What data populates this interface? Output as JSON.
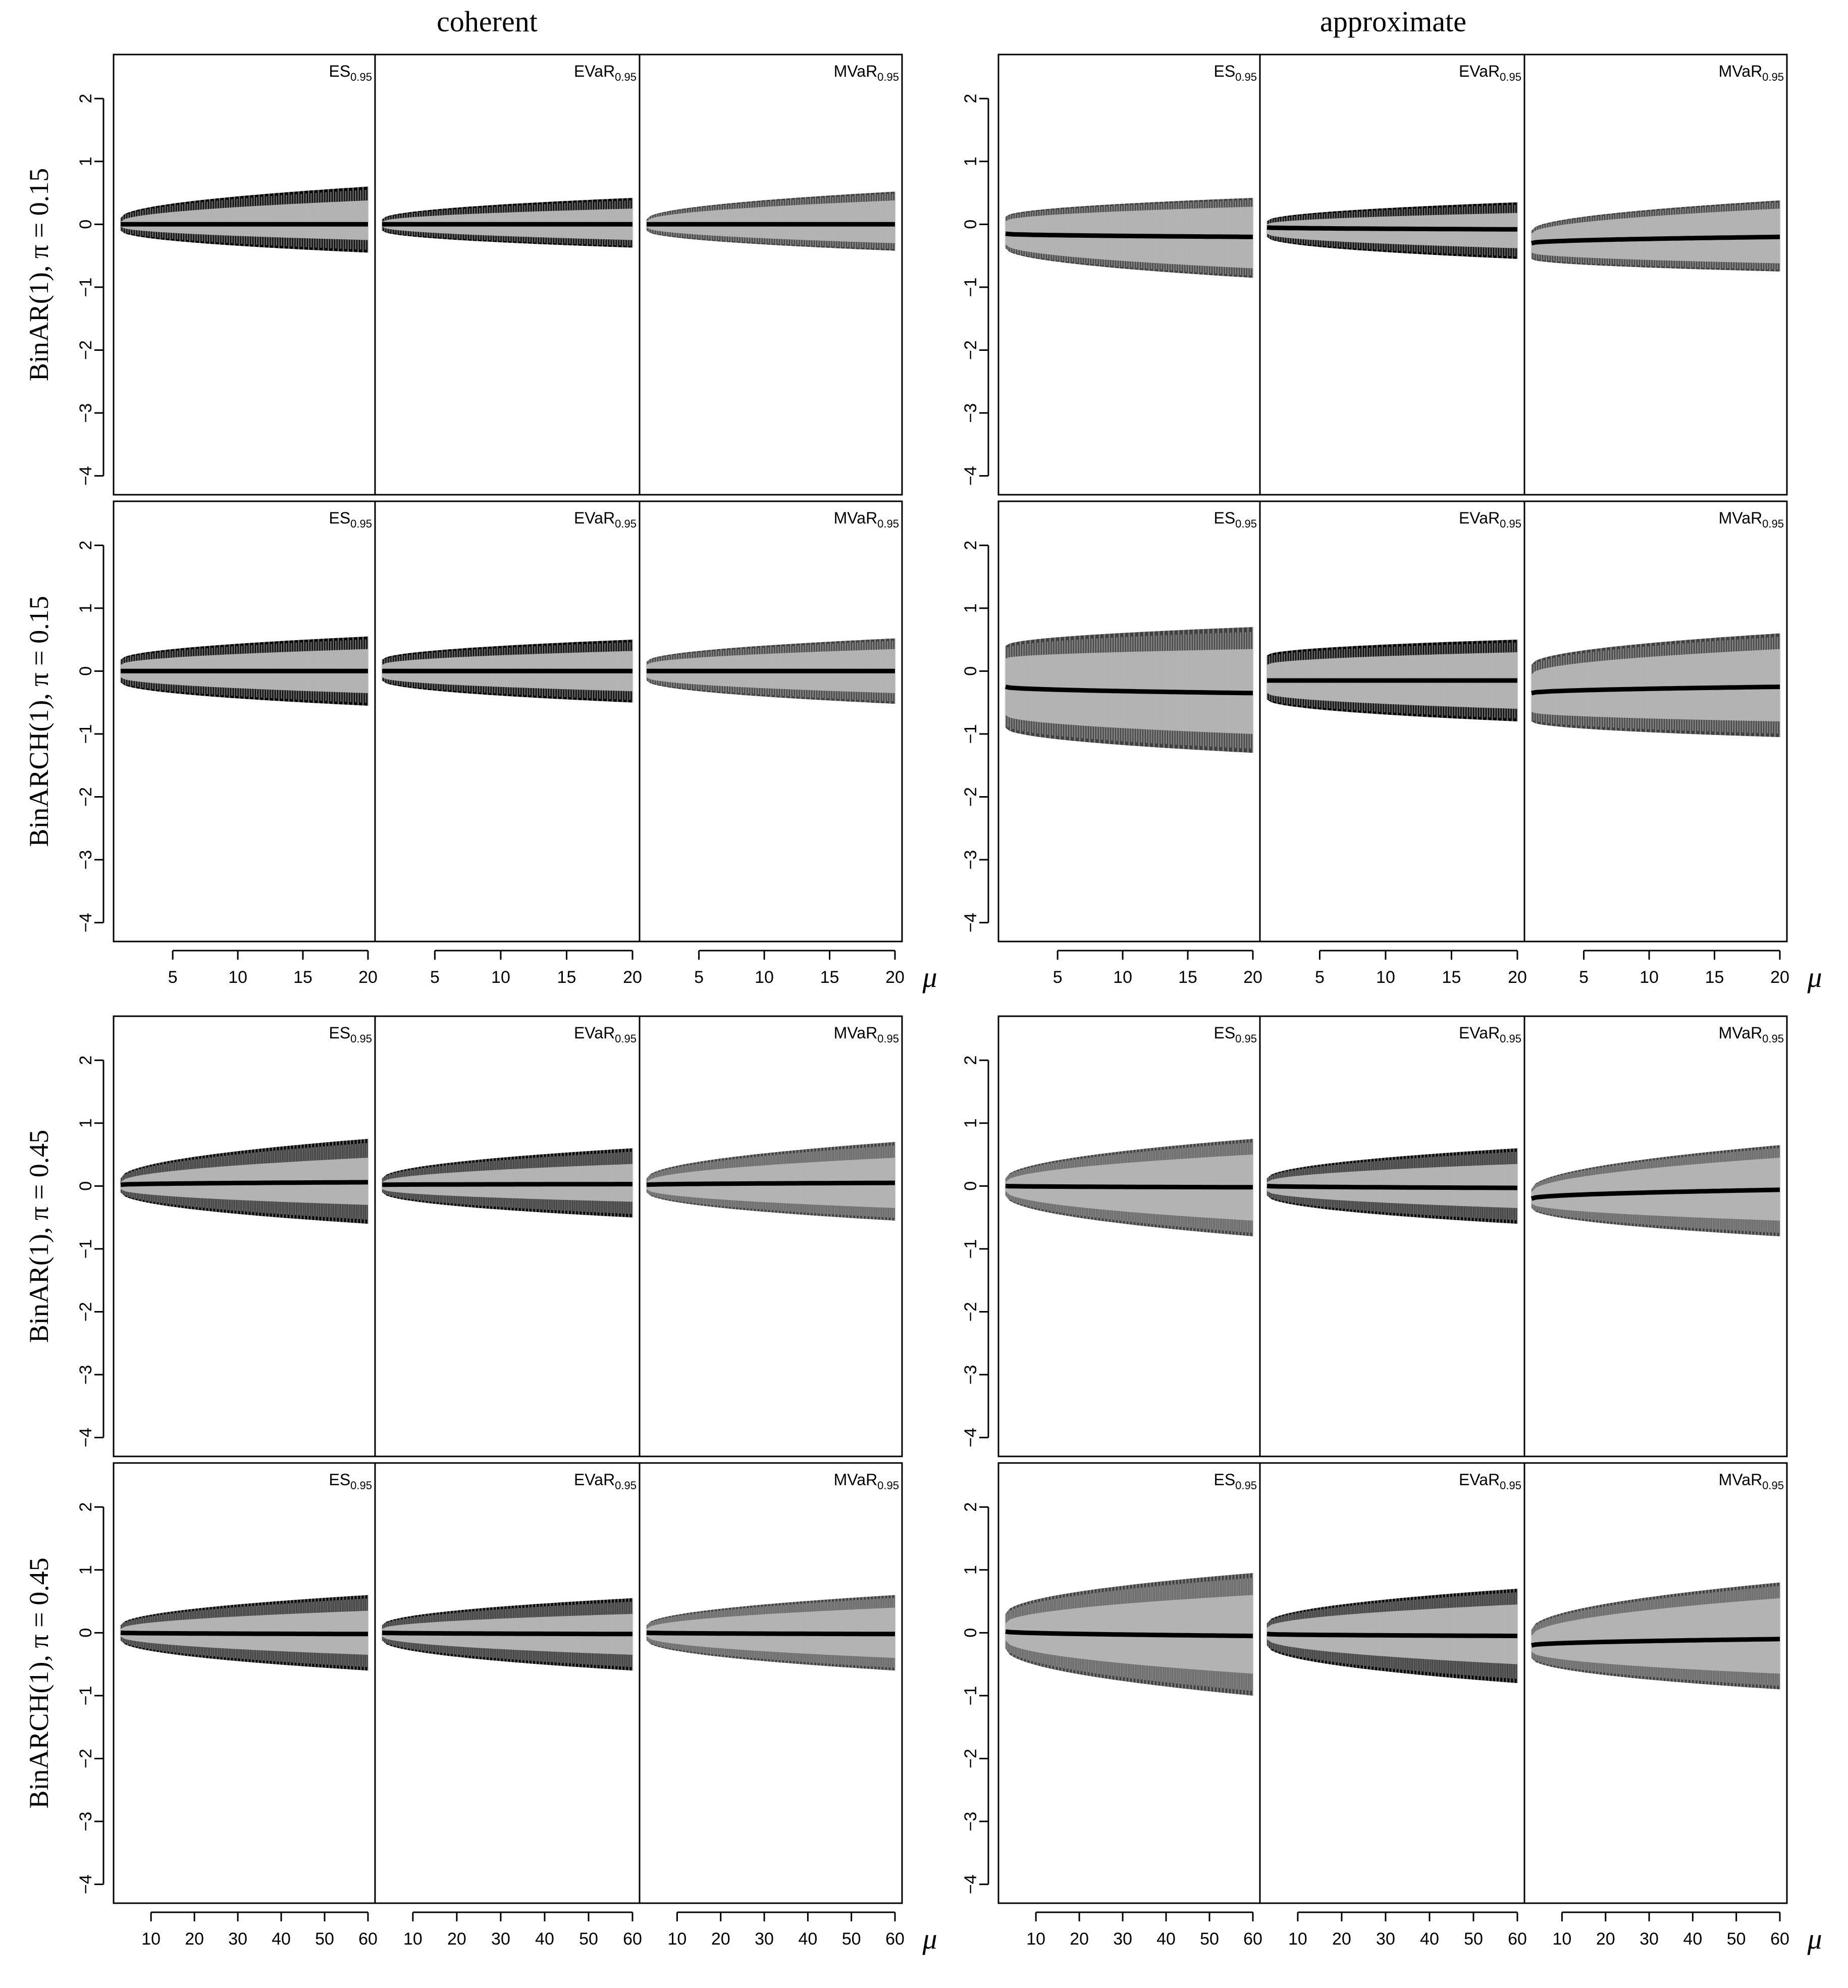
{
  "figure": {
    "column_titles": [
      "coherent",
      "approximate"
    ],
    "row_labels": [
      "BinAR(1), π = 0.15",
      "BinARCH(1), π = 0.15",
      "BinAR(1), π = 0.45",
      "BinARCH(1), π = 0.45"
    ],
    "panel_labels": [
      {
        "main": "ES",
        "sub": "0.95"
      },
      {
        "main": "EVaR",
        "sub": "0.95"
      },
      {
        "main": "MVaR",
        "sub": "0.95"
      }
    ],
    "y_ticks": [
      "2",
      "1",
      "0",
      "−1",
      "−2",
      "−3",
      "−4"
    ],
    "x_label": "μ",
    "x_ticks_top": [
      "5",
      "10",
      "15",
      "20"
    ],
    "x_ticks_bottom": [
      "10",
      "20",
      "30",
      "40",
      "50",
      "60"
    ]
  },
  "colors": {
    "interval_fill": "#b3b3b3",
    "dark_bars": "#000000",
    "grey_bars": "#404040",
    "mean_line": "#000000"
  },
  "chart_data": {
    "type": "area",
    "description_of_series": "per panel: lower bound, mean and upper bound of the deviation across μ",
    "ylim": [
      -4.3,
      2.7
    ],
    "groups": [
      {
        "x_range": [
          1,
          20
        ],
        "rows": [
          "BinAR(1), π = 0.15",
          "BinARCH(1), π = 0.15"
        ],
        "panels": [
          {
            "column": "coherent",
            "row": "BinAR(1), π = 0.15",
            "measure": "ES0.95",
            "x": [
              1,
              20
            ],
            "mean": [
              0.0,
              0.0
            ],
            "upper": [
              0.1,
              0.6
            ],
            "lower": [
              -0.1,
              -0.45
            ],
            "inner_upper": [
              0.04,
              0.38
            ],
            "inner_lower": [
              -0.04,
              -0.25
            ],
            "style": "dark"
          },
          {
            "column": "coherent",
            "row": "BinAR(1), π = 0.15",
            "measure": "EVaR0.95",
            "x": [
              1,
              20
            ],
            "mean": [
              0.0,
              0.0
            ],
            "upper": [
              0.08,
              0.42
            ],
            "lower": [
              -0.1,
              -0.37
            ],
            "inner_upper": [
              0.04,
              0.25
            ],
            "inner_lower": [
              -0.04,
              -0.25
            ],
            "style": "dark"
          },
          {
            "column": "coherent",
            "row": "BinAR(1), π = 0.15",
            "measure": "MVaR0.95",
            "x": [
              1,
              20
            ],
            "mean": [
              0.0,
              0.0
            ],
            "upper": [
              0.08,
              0.52
            ],
            "lower": [
              -0.1,
              -0.42
            ],
            "inner_upper": [
              0.05,
              0.38
            ],
            "inner_lower": [
              -0.05,
              -0.3
            ],
            "style": "grey"
          },
          {
            "column": "approximate",
            "row": "BinAR(1), π = 0.15",
            "measure": "ES0.95",
            "x": [
              1,
              20
            ],
            "mean": [
              -0.15,
              -0.2
            ],
            "upper": [
              0.12,
              0.42
            ],
            "lower": [
              -0.38,
              -0.85
            ],
            "inner_upper": [
              0.05,
              0.28
            ],
            "inner_lower": [
              -0.32,
              -0.7
            ],
            "style": "grey"
          },
          {
            "column": "approximate",
            "row": "BinAR(1), π = 0.15",
            "measure": "EVaR0.95",
            "x": [
              1,
              20
            ],
            "mean": [
              -0.05,
              -0.08
            ],
            "upper": [
              0.05,
              0.35
            ],
            "lower": [
              -0.2,
              -0.55
            ],
            "inner_upper": [
              0.0,
              0.18
            ],
            "inner_lower": [
              -0.15,
              -0.38
            ],
            "style": "dark"
          },
          {
            "column": "approximate",
            "row": "BinAR(1), π = 0.15",
            "measure": "MVaR0.95",
            "x": [
              1,
              20
            ],
            "mean": [
              -0.3,
              -0.2
            ],
            "upper": [
              -0.1,
              0.38
            ],
            "lower": [
              -0.55,
              -0.75
            ],
            "inner_upper": [
              -0.15,
              0.25
            ],
            "inner_lower": [
              -0.45,
              -0.62
            ],
            "style": "grey"
          },
          {
            "column": "coherent",
            "row": "BinARCH(1), π = 0.15",
            "measure": "ES0.95",
            "x": [
              1,
              20
            ],
            "mean": [
              0.0,
              0.0
            ],
            "upper": [
              0.18,
              0.55
            ],
            "lower": [
              -0.18,
              -0.55
            ],
            "inner_upper": [
              0.1,
              0.35
            ],
            "inner_lower": [
              -0.1,
              -0.35
            ],
            "style": "dark"
          },
          {
            "column": "coherent",
            "row": "BinARCH(1), π = 0.15",
            "measure": "EVaR0.95",
            "x": [
              1,
              20
            ],
            "mean": [
              0.0,
              0.0
            ],
            "upper": [
              0.18,
              0.5
            ],
            "lower": [
              -0.15,
              -0.5
            ],
            "inner_upper": [
              0.1,
              0.32
            ],
            "inner_lower": [
              -0.1,
              -0.32
            ],
            "style": "dark"
          },
          {
            "column": "coherent",
            "row": "BinARCH(1), π = 0.15",
            "measure": "MVaR0.95",
            "x": [
              1,
              20
            ],
            "mean": [
              0.0,
              0.0
            ],
            "upper": [
              0.15,
              0.52
            ],
            "lower": [
              -0.15,
              -0.52
            ],
            "inner_upper": [
              0.1,
              0.35
            ],
            "inner_lower": [
              -0.1,
              -0.35
            ],
            "style": "grey"
          },
          {
            "column": "approximate",
            "row": "BinARCH(1), π = 0.15",
            "measure": "ES0.95",
            "x": [
              1,
              20
            ],
            "mean": [
              -0.25,
              -0.35
            ],
            "upper": [
              0.4,
              0.7
            ],
            "lower": [
              -0.9,
              -1.3
            ],
            "inner_upper": [
              0.2,
              0.35
            ],
            "inner_lower": [
              -0.7,
              -1.0
            ],
            "style": "grey"
          },
          {
            "column": "approximate",
            "row": "BinARCH(1), π = 0.15",
            "measure": "EVaR0.95",
            "x": [
              1,
              20
            ],
            "mean": [
              -0.15,
              -0.15
            ],
            "upper": [
              0.25,
              0.5
            ],
            "lower": [
              -0.45,
              -0.8
            ],
            "inner_upper": [
              0.1,
              0.3
            ],
            "inner_lower": [
              -0.35,
              -0.6
            ],
            "style": "dark"
          },
          {
            "column": "approximate",
            "row": "BinARCH(1), π = 0.15",
            "measure": "MVaR0.95",
            "x": [
              1,
              20
            ],
            "mean": [
              -0.35,
              -0.25
            ],
            "upper": [
              0.1,
              0.6
            ],
            "lower": [
              -0.8,
              -1.05
            ],
            "inner_upper": [
              -0.05,
              0.35
            ],
            "inner_lower": [
              -0.65,
              -0.8
            ],
            "style": "grey"
          }
        ]
      },
      {
        "x_range": [
          3,
          60
        ],
        "rows": [
          "BinAR(1), π = 0.45",
          "BinARCH(1), π = 0.45"
        ],
        "panels": [
          {
            "column": "coherent",
            "row": "BinAR(1), π = 0.45",
            "measure": "ES0.95",
            "x": [
              3,
              60
            ],
            "mean": [
              0.02,
              0.06
            ],
            "upper": [
              0.12,
              0.75
            ],
            "lower": [
              -0.1,
              -0.6
            ],
            "inner_upper": [
              0.06,
              0.45
            ],
            "inner_lower": [
              -0.05,
              -0.3
            ],
            "style": "dark"
          },
          {
            "column": "coherent",
            "row": "BinAR(1), π = 0.45",
            "measure": "EVaR0.95",
            "x": [
              3,
              60
            ],
            "mean": [
              0.02,
              0.03
            ],
            "upper": [
              0.12,
              0.6
            ],
            "lower": [
              -0.1,
              -0.5
            ],
            "inner_upper": [
              0.06,
              0.35
            ],
            "inner_lower": [
              -0.05,
              -0.25
            ],
            "style": "dark"
          },
          {
            "column": "coherent",
            "row": "BinAR(1), π = 0.45",
            "measure": "MVaR0.95",
            "x": [
              3,
              60
            ],
            "mean": [
              0.02,
              0.05
            ],
            "upper": [
              0.12,
              0.7
            ],
            "lower": [
              -0.1,
              -0.55
            ],
            "inner_upper": [
              0.06,
              0.45
            ],
            "inner_lower": [
              -0.05,
              -0.35
            ],
            "style": "grey"
          },
          {
            "column": "approximate",
            "row": "BinAR(1), π = 0.45",
            "measure": "ES0.95",
            "x": [
              3,
              60
            ],
            "mean": [
              0.0,
              -0.02
            ],
            "upper": [
              0.12,
              0.75
            ],
            "lower": [
              -0.15,
              -0.8
            ],
            "inner_upper": [
              0.06,
              0.5
            ],
            "inner_lower": [
              -0.08,
              -0.55
            ],
            "style": "grey"
          },
          {
            "column": "approximate",
            "row": "BinAR(1), π = 0.45",
            "measure": "EVaR0.95",
            "x": [
              3,
              60
            ],
            "mean": [
              0.0,
              -0.03
            ],
            "upper": [
              0.12,
              0.6
            ],
            "lower": [
              -0.15,
              -0.6
            ],
            "inner_upper": [
              0.06,
              0.35
            ],
            "inner_lower": [
              -0.08,
              -0.35
            ],
            "style": "dark"
          },
          {
            "column": "approximate",
            "row": "BinAR(1), π = 0.45",
            "measure": "MVaR0.95",
            "x": [
              3,
              60
            ],
            "mean": [
              -0.2,
              -0.06
            ],
            "upper": [
              -0.05,
              0.65
            ],
            "lower": [
              -0.35,
              -0.8
            ],
            "inner_upper": [
              -0.1,
              0.45
            ],
            "inner_lower": [
              -0.28,
              -0.55
            ],
            "style": "grey"
          },
          {
            "column": "coherent",
            "row": "BinARCH(1), π = 0.45",
            "measure": "ES0.95",
            "x": [
              3,
              60
            ],
            "mean": [
              0.0,
              -0.02
            ],
            "upper": [
              0.12,
              0.6
            ],
            "lower": [
              -0.12,
              -0.6
            ],
            "inner_upper": [
              0.06,
              0.35
            ],
            "inner_lower": [
              -0.06,
              -0.35
            ],
            "style": "dark"
          },
          {
            "column": "coherent",
            "row": "BinARCH(1), π = 0.45",
            "measure": "EVaR0.95",
            "x": [
              3,
              60
            ],
            "mean": [
              0.0,
              -0.02
            ],
            "upper": [
              0.12,
              0.55
            ],
            "lower": [
              -0.12,
              -0.6
            ],
            "inner_upper": [
              0.06,
              0.3
            ],
            "inner_lower": [
              -0.06,
              -0.35
            ],
            "style": "dark"
          },
          {
            "column": "coherent",
            "row": "BinARCH(1), π = 0.45",
            "measure": "MVaR0.95",
            "x": [
              3,
              60
            ],
            "mean": [
              0.0,
              -0.02
            ],
            "upper": [
              0.12,
              0.6
            ],
            "lower": [
              -0.12,
              -0.6
            ],
            "inner_upper": [
              0.06,
              0.4
            ],
            "inner_lower": [
              -0.06,
              -0.4
            ],
            "style": "grey"
          },
          {
            "column": "approximate",
            "row": "BinARCH(1), π = 0.45",
            "measure": "ES0.95",
            "x": [
              3,
              60
            ],
            "mean": [
              0.02,
              -0.05
            ],
            "upper": [
              0.3,
              0.95
            ],
            "lower": [
              -0.25,
              -1.0
            ],
            "inner_upper": [
              0.15,
              0.6
            ],
            "inner_lower": [
              -0.12,
              -0.65
            ],
            "style": "grey"
          },
          {
            "column": "approximate",
            "row": "BinARCH(1), π = 0.45",
            "measure": "EVaR0.95",
            "x": [
              3,
              60
            ],
            "mean": [
              -0.02,
              -0.05
            ],
            "upper": [
              0.15,
              0.7
            ],
            "lower": [
              -0.2,
              -0.8
            ],
            "inner_upper": [
              0.08,
              0.45
            ],
            "inner_lower": [
              -0.1,
              -0.5
            ],
            "style": "dark"
          },
          {
            "column": "approximate",
            "row": "BinARCH(1), π = 0.45",
            "measure": "MVaR0.95",
            "x": [
              3,
              60
            ],
            "mean": [
              -0.2,
              -0.1
            ],
            "upper": [
              0.05,
              0.8
            ],
            "lower": [
              -0.4,
              -0.9
            ],
            "inner_upper": [
              -0.05,
              0.55
            ],
            "inner_lower": [
              -0.3,
              -0.65
            ],
            "style": "grey"
          }
        ]
      }
    ]
  }
}
